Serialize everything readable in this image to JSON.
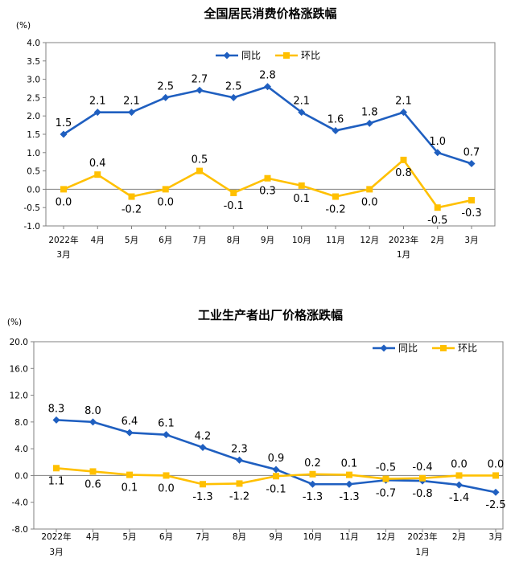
{
  "colors": {
    "yoy": "#1f5fc0",
    "mom": "#ffc000",
    "axis": "#808080"
  },
  "chart_data": [
    {
      "type": "line",
      "title": "全国居民消费价格涨跌幅",
      "unit": "(%)",
      "categories": [
        "2022年|3月",
        "4月",
        "5月",
        "6月",
        "7月",
        "8月",
        "9月",
        "10月",
        "11月",
        "12月",
        "2023年|1月",
        "2月",
        "3月"
      ],
      "ylim": [
        -1.0,
        4.0
      ],
      "yticks": [
        "4.0",
        "3.5",
        "3.0",
        "2.5",
        "2.0",
        "1.5",
        "1.0",
        "0.5",
        "0.0",
        "-0.5",
        "-1.0"
      ],
      "grid": false,
      "legend": "top-right",
      "series": [
        {
          "name": "同比",
          "values": [
            1.5,
            2.1,
            2.1,
            2.5,
            2.7,
            2.5,
            2.8,
            2.1,
            1.6,
            1.8,
            2.1,
            1.0,
            0.7
          ],
          "labels": [
            "1.5",
            "2.1",
            "2.1",
            "2.5",
            "2.7",
            "2.5",
            "2.8",
            "2.1",
            "1.6",
            "1.8",
            "2.1",
            "1.0",
            "0.7"
          ]
        },
        {
          "name": "环比",
          "values": [
            0.0,
            0.4,
            -0.2,
            0.0,
            0.5,
            -0.1,
            0.3,
            0.1,
            -0.2,
            0.0,
            0.8,
            -0.5,
            -0.3
          ],
          "labels": [
            "0.0",
            "0.4",
            "-0.2",
            "0.0",
            "0.5",
            "-0.1",
            "0.3",
            "0.1",
            "-0.2",
            "0.0",
            "0.8",
            "-0.5",
            "-0.3"
          ]
        }
      ]
    },
    {
      "type": "line",
      "title": "工业生产者出厂价格涨跌幅",
      "unit": "(%)",
      "categories": [
        "2022年|3月",
        "4月",
        "5月",
        "6月",
        "7月",
        "8月",
        "9月",
        "10月",
        "11月",
        "12月",
        "2023年|1月",
        "2月",
        "3月"
      ],
      "ylim": [
        -8.0,
        20.0
      ],
      "yticks": [
        "20.0",
        "16.0",
        "12.0",
        "8.0",
        "4.0",
        "0.0",
        "-4.0",
        "-8.0"
      ],
      "grid": false,
      "legend": "top-right",
      "series": [
        {
          "name": "同比",
          "values": [
            8.3,
            8.0,
            6.4,
            6.1,
            4.2,
            2.3,
            0.9,
            -1.3,
            -1.3,
            -0.7,
            -0.8,
            -1.4,
            -2.5
          ],
          "labels": [
            "8.3",
            "8.0",
            "6.4",
            "6.1",
            "4.2",
            "2.3",
            "0.9",
            "-1.3",
            "-1.3",
            "-0.7",
            "-0.8",
            "-1.4",
            "-2.5"
          ]
        },
        {
          "name": "环比",
          "values": [
            1.1,
            0.6,
            0.1,
            0.0,
            -1.3,
            -1.2,
            -0.1,
            0.2,
            0.1,
            -0.5,
            -0.4,
            0.0,
            0.0
          ],
          "labels": [
            "1.1",
            "0.6",
            "0.1",
            "0.0",
            "-1.3",
            "-1.2",
            "-0.1",
            "0.2",
            "0.1",
            "-0.5",
            "-0.4",
            "0.0",
            "0.0"
          ]
        }
      ]
    }
  ]
}
